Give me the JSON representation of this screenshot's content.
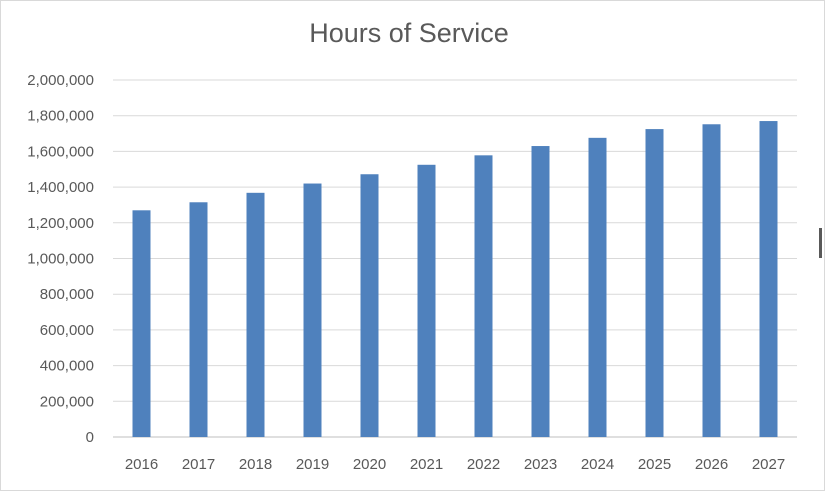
{
  "chart_data": {
    "type": "bar",
    "title": "Hours of Service",
    "xlabel": "",
    "ylabel": "",
    "categories": [
      "2016",
      "2017",
      "2018",
      "2019",
      "2020",
      "2021",
      "2022",
      "2023",
      "2024",
      "2025",
      "2026",
      "2027"
    ],
    "series": [
      {
        "values": [
          1270000,
          1315000,
          1368000,
          1420000,
          1472000,
          1525000,
          1578000,
          1630000,
          1676000,
          1725000,
          1752000,
          1770000
        ],
        "color": "#4f81bd"
      }
    ],
    "ylim": [
      0,
      2000000
    ],
    "yticks": [
      "0",
      "200,000",
      "400,000",
      "600,000",
      "800,000",
      "1,000,000",
      "1,200,000",
      "1,400,000",
      "1,600,000",
      "1,800,000",
      "2,000,000"
    ],
    "grid": true,
    "legend": "none",
    "colors": {
      "bar": "#4f81bd",
      "grid": "#d9d9d9",
      "text": "#595959",
      "axis": "#bfbfbf"
    }
  }
}
